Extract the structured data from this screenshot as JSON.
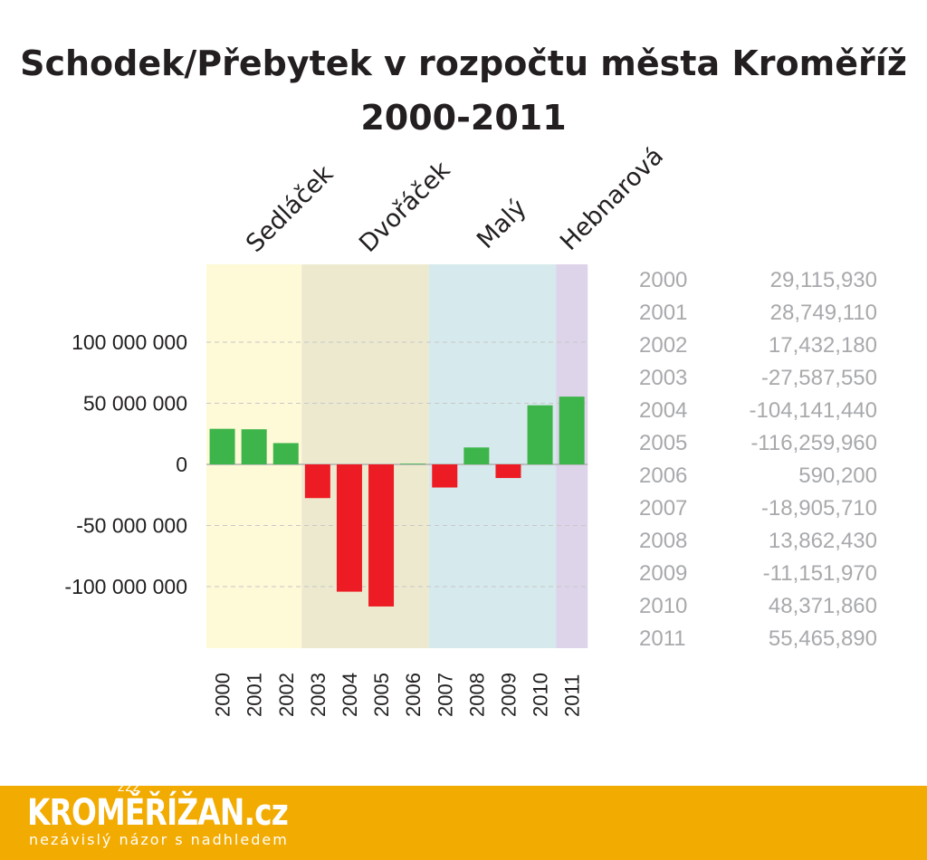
{
  "title_line1": "Schodek/Přebytek v rozpočtu města Kroměříž",
  "title_line2": "2000-2011",
  "colors": {
    "positive": "#3db54a",
    "negative": "#ed1c24",
    "band_sedlacek": "#fef9d7",
    "band_dvoracek": "#ede9cf",
    "band_maly": "#d6e9ec",
    "band_hebnarova": "#ddd4ea",
    "footer": "#f2ab00"
  },
  "chart_data": {
    "type": "bar",
    "title": "Schodek/Přebytek v rozpočtu města Kroměříž 2000-2011",
    "categories": [
      "2000",
      "2001",
      "2002",
      "2003",
      "2004",
      "2005",
      "2006",
      "2007",
      "2008",
      "2009",
      "2010",
      "2011"
    ],
    "values": [
      29115930,
      28749110,
      17432180,
      -27587550,
      -104141440,
      -116259960,
      590200,
      -18905710,
      13862430,
      -11151970,
      48371860,
      55465890
    ],
    "ylim": [
      -150000000,
      150000000
    ],
    "yticks": [
      100000000,
      50000000,
      0,
      -50000000,
      -100000000
    ],
    "ytick_labels": [
      "100 000 000",
      "50 000 000",
      "0",
      "-50 000 000",
      "-100 000 000"
    ],
    "grid": true,
    "periods": [
      {
        "name": "Sedláček",
        "start": "2000",
        "end": "2002",
        "color": "#fef9d7"
      },
      {
        "name": "Dvořáček",
        "start": "2003",
        "end": "2006",
        "color": "#ede9cf"
      },
      {
        "name": "Malý",
        "start": "2007",
        "end": "2010",
        "color": "#d6e9ec"
      },
      {
        "name": "Hebnarová",
        "start": "2011",
        "end": "2011",
        "color": "#ddd4ea"
      }
    ]
  },
  "value_table": [
    {
      "year": "2000",
      "value": "29,115,930"
    },
    {
      "year": "2001",
      "value": "28,749,110"
    },
    {
      "year": "2002",
      "value": "17,432,180"
    },
    {
      "year": "2003",
      "value": "-27,587,550"
    },
    {
      "year": "2004",
      "value": "-104,141,440"
    },
    {
      "year": "2005",
      "value": "-116,259,960"
    },
    {
      "year": "2006",
      "value": "590,200"
    },
    {
      "year": "2007",
      "value": "-18,905,710"
    },
    {
      "year": "2008",
      "value": "13,862,430"
    },
    {
      "year": "2009",
      "value": "-11,151,970"
    },
    {
      "year": "2010",
      "value": "48,371,860"
    },
    {
      "year": "2011",
      "value": "55,465,890"
    }
  ],
  "footer": {
    "logo_text": "KROMĚŘÍŽAN.cz",
    "logo_accent": "žžž",
    "tagline": "nezávislý názor s nadhledem"
  }
}
